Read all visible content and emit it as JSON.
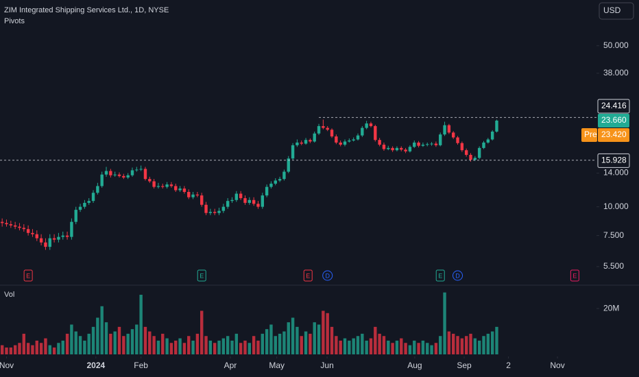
{
  "chart_data": {
    "type": "candlestick",
    "title": "ZIM Integrated Shipping Services Ltd., 1D, NYSE",
    "indicator": "Pivots",
    "currency": "USD",
    "log_scale": true,
    "xlim": [
      -0.5,
      137
    ],
    "ylim": [
      4.6,
      79
    ],
    "yticks": [
      {
        "value": 5.5,
        "label": "5.500"
      },
      {
        "value": 7.5,
        "label": "7.500"
      },
      {
        "value": 10,
        "label": "10.000"
      },
      {
        "value": 14,
        "label": "14.000"
      },
      {
        "value": 38,
        "label": "38.000"
      },
      {
        "value": 50,
        "label": "50.000"
      }
    ],
    "xticks": [
      {
        "value": 1,
        "label": "Nov"
      },
      {
        "value": 21.6,
        "label": "2024"
      },
      {
        "value": 32,
        "label": "Feb"
      },
      {
        "value": 52.6,
        "label": "Apr"
      },
      {
        "value": 63.3,
        "label": "May"
      },
      {
        "value": 74.9,
        "label": "Jun"
      },
      {
        "value": 95.1,
        "label": "Aug"
      },
      {
        "value": 106.5,
        "label": "Sep"
      },
      {
        "value": 116.7,
        "label": "2"
      },
      {
        "value": 128,
        "label": "Nov"
      }
    ],
    "up_color": "#22ab94",
    "down_color": "#f23645",
    "open": [
      8.6,
      8.5,
      8.4,
      8.3,
      8.2,
      8.1,
      8.0,
      7.7,
      7.6,
      7.3,
      7.0,
      6.7,
      7.3,
      7.2,
      7.4,
      7.5,
      7.4,
      8.6,
      9.7,
      10.0,
      10.4,
      10.6,
      11.5,
      12.3,
      13.8,
      14.3,
      13.7,
      13.8,
      13.6,
      13.4,
      13.7,
      14.4,
      14.5,
      14.6,
      13.2,
      12.9,
      12.2,
      12.3,
      12.2,
      12.5,
      12.3,
      11.8,
      12.0,
      11.6,
      11.0,
      11.3,
      11.2,
      10.2,
      9.4,
      9.5,
      9.4,
      9.6,
      10.0,
      10.6,
      10.7,
      11.4,
      10.9,
      10.4,
      10.7,
      10.3,
      10.0,
      11.2,
      12.2,
      12.6,
      13.0,
      13.2,
      14.2,
      16.2,
      18.5,
      19.0,
      18.8,
      19.5,
      19.2,
      20.8,
      22.4,
      22.0,
      21.6,
      20.2,
      19.0,
      18.6,
      19.2,
      19.4,
      19.6,
      20.4,
      22.0,
      23.0,
      22.4,
      19.5,
      18.6,
      17.8,
      18.0,
      17.6,
      18.0,
      17.7,
      17.4,
      18.2,
      19.0,
      18.4,
      18.6,
      18.7,
      18.8,
      18.5,
      20.6,
      22.6,
      21.0,
      20.0,
      18.9,
      17.6,
      16.8,
      16.0,
      16.3,
      18.0,
      19.0,
      19.6,
      21.2
    ],
    "high": [
      8.9,
      8.8,
      8.7,
      8.6,
      8.5,
      8.4,
      8.3,
      8.0,
      7.9,
      7.6,
      7.3,
      7.6,
      7.6,
      7.7,
      7.8,
      7.8,
      8.9,
      10.0,
      10.3,
      10.7,
      10.9,
      11.8,
      12.7,
      14.2,
      14.9,
      14.6,
      14.2,
      14.1,
      13.9,
      14.0,
      14.8,
      14.9,
      15.1,
      14.9,
      13.5,
      13.2,
      12.7,
      12.6,
      12.8,
      12.8,
      12.6,
      12.3,
      12.3,
      11.9,
      11.6,
      11.6,
      11.5,
      10.5,
      9.8,
      9.8,
      9.9,
      10.3,
      10.9,
      11.0,
      11.7,
      11.7,
      11.2,
      11.0,
      11.0,
      10.6,
      11.5,
      12.5,
      12.9,
      13.3,
      13.5,
      14.5,
      16.6,
      18.9,
      19.6,
      19.4,
      19.9,
      19.8,
      21.2,
      22.9,
      23.9,
      22.4,
      21.9,
      20.6,
      19.4,
      19.6,
      19.8,
      20.0,
      20.8,
      22.4,
      23.6,
      23.4,
      22.7,
      19.9,
      19.0,
      18.4,
      18.3,
      18.3,
      18.3,
      18.0,
      18.5,
      19.4,
      19.3,
      19.0,
      19.0,
      19.1,
      19.2,
      21.0,
      23.4,
      22.9,
      21.3,
      20.3,
      19.2,
      17.9,
      17.1,
      16.6,
      18.3,
      19.3,
      19.9,
      21.5,
      23.9
    ],
    "low": [
      8.2,
      8.2,
      8.1,
      8.0,
      7.9,
      7.8,
      7.5,
      7.4,
      7.1,
      6.8,
      6.5,
      6.5,
      7.0,
      7.0,
      7.2,
      7.2,
      7.2,
      8.4,
      9.5,
      9.8,
      10.2,
      10.4,
      11.3,
      12.1,
      13.5,
      13.4,
      13.5,
      13.4,
      13.2,
      13.2,
      13.5,
      14.2,
      14.3,
      13.0,
      12.7,
      12.0,
      12.0,
      12.0,
      12.0,
      12.1,
      11.6,
      11.6,
      11.4,
      10.8,
      10.8,
      11.0,
      10.0,
      9.2,
      9.2,
      9.2,
      9.2,
      9.4,
      9.8,
      10.4,
      10.5,
      10.7,
      10.2,
      10.2,
      10.1,
      9.8,
      9.8,
      11.0,
      12.0,
      12.4,
      12.8,
      13.0,
      14.0,
      16.0,
      18.2,
      18.5,
      18.6,
      18.9,
      19.0,
      20.5,
      21.7,
      21.3,
      19.9,
      18.7,
      18.3,
      18.3,
      19.0,
      19.2,
      19.4,
      20.1,
      21.7,
      22.1,
      19.2,
      18.3,
      17.5,
      17.6,
      17.3,
      17.4,
      17.4,
      17.1,
      17.2,
      18.0,
      18.1,
      18.2,
      18.3,
      18.4,
      18.2,
      18.3,
      20.3,
      20.7,
      19.7,
      18.6,
      17.3,
      16.5,
      15.7,
      15.8,
      16.1,
      17.8,
      18.8,
      19.4,
      21.0
    ],
    "close": [
      8.5,
      8.4,
      8.3,
      8.2,
      8.1,
      8.0,
      7.7,
      7.6,
      7.3,
      7.0,
      6.7,
      7.3,
      7.2,
      7.4,
      7.5,
      7.4,
      8.6,
      9.7,
      10.0,
      10.4,
      10.6,
      11.5,
      12.3,
      13.8,
      14.3,
      13.7,
      13.8,
      13.6,
      13.4,
      13.7,
      14.4,
      14.5,
      14.6,
      13.2,
      12.9,
      12.2,
      12.3,
      12.2,
      12.5,
      12.3,
      11.8,
      12.0,
      11.6,
      11.0,
      11.3,
      11.2,
      10.2,
      9.4,
      9.5,
      9.4,
      9.6,
      10.0,
      10.6,
      10.7,
      11.4,
      10.9,
      10.4,
      10.7,
      10.3,
      10.0,
      11.2,
      12.2,
      12.6,
      13.0,
      13.2,
      14.2,
      16.2,
      18.5,
      19.0,
      18.8,
      19.5,
      19.2,
      20.8,
      22.4,
      22.0,
      21.6,
      20.2,
      19.0,
      18.6,
      19.2,
      19.4,
      19.6,
      20.4,
      22.0,
      23.0,
      22.4,
      19.5,
      18.6,
      17.8,
      18.0,
      17.6,
      18.0,
      17.7,
      17.4,
      18.2,
      19.0,
      18.4,
      18.6,
      18.7,
      18.8,
      18.5,
      20.6,
      22.6,
      21.0,
      20.0,
      18.9,
      17.6,
      16.8,
      16.0,
      16.3,
      18.0,
      19.0,
      19.6,
      21.2,
      23.66
    ],
    "volume": {
      "label": "Vol",
      "ylim": [
        0,
        27.5
      ],
      "yticks": [
        {
          "value": 20,
          "label": "20M"
        }
      ],
      "values": [
        4,
        3,
        3,
        4,
        5,
        9,
        5,
        4,
        6,
        5,
        7,
        4,
        3,
        5,
        6,
        9,
        13,
        10,
        8,
        6,
        9,
        12,
        16,
        21,
        14,
        9,
        10,
        12,
        8,
        9,
        11,
        13,
        26,
        12,
        10,
        8,
        6,
        9,
        7,
        5,
        6,
        7,
        5,
        8,
        6,
        9,
        19,
        8,
        6,
        5,
        6,
        7,
        8,
        6,
        9,
        5,
        6,
        5,
        8,
        6,
        9,
        11,
        13,
        8,
        9,
        10,
        14,
        16,
        12,
        8,
        10,
        9,
        14,
        13,
        19,
        18,
        12,
        8,
        6,
        7,
        6,
        7,
        8,
        9,
        6,
        7,
        12,
        9,
        8,
        6,
        5,
        6,
        7,
        5,
        4,
        6,
        5,
        6,
        5,
        4,
        5,
        8,
        27,
        10,
        9,
        8,
        7,
        8,
        9,
        7,
        6,
        8,
        9,
        10,
        12
      ]
    },
    "levels": {
      "pivot_high": 24.416,
      "pivot_high_from": 73,
      "last": {
        "value": 23.66,
        "label": "23.660"
      },
      "pre_market": {
        "tag": "Pre",
        "value": 23.42,
        "label": "23.420"
      },
      "pivot_low": 15.928
    },
    "events": [
      {
        "label": "E",
        "x": 6,
        "color": "#f23645"
      },
      {
        "label": "E",
        "x": 46,
        "color": "#22ab94"
      },
      {
        "label": "E",
        "x": 70.5,
        "color": "#f23645"
      },
      {
        "label": "D",
        "x": 75,
        "color": "#2962ff"
      },
      {
        "label": "E",
        "x": 101,
        "color": "#22ab94"
      },
      {
        "label": "D",
        "x": 105,
        "color": "#2962ff"
      },
      {
        "label": "E",
        "x": 132,
        "color": "#e91e63"
      }
    ]
  }
}
